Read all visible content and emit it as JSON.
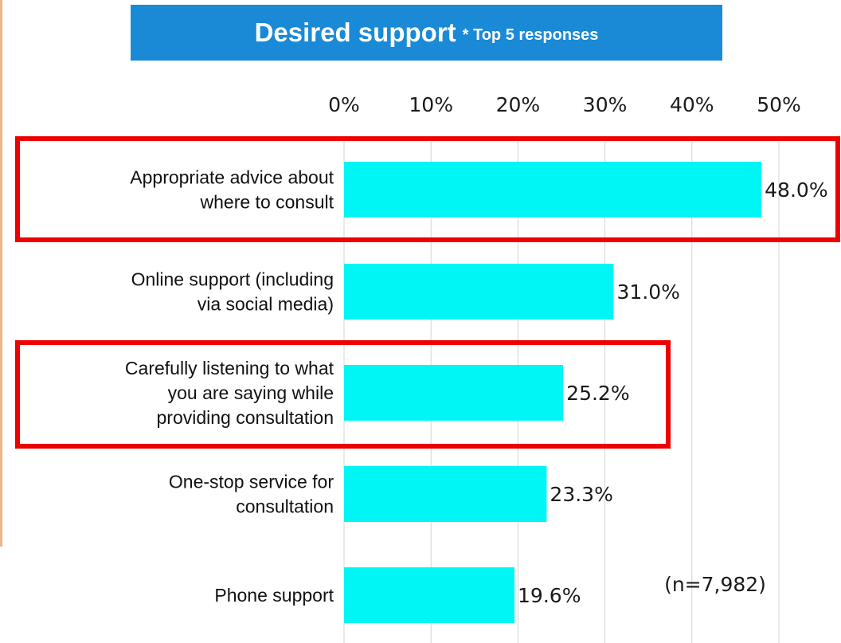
{
  "title": {
    "main": "Desired support",
    "sub": "* Top 5 responses",
    "background": "#1a8ad6"
  },
  "chart_data": {
    "type": "bar",
    "orientation": "horizontal",
    "categories": [
      [
        "Appropriate advice about",
        "where to consult"
      ],
      [
        "Online support (including",
        "via social media)"
      ],
      [
        "Carefully listening to what",
        "you are saying while",
        "providing consultation"
      ],
      [
        "One-stop service for",
        "consultation"
      ],
      [
        "Phone support"
      ]
    ],
    "values": [
      48.0,
      31.0,
      25.2,
      23.3,
      19.6
    ],
    "value_labels": [
      "48.0%",
      "31.0%",
      "25.2%",
      "23.3%",
      "19.6%"
    ],
    "xlim": [
      0,
      50
    ],
    "x_ticks": [
      "0%",
      "10%",
      "20%",
      "30%",
      "40%",
      "50%"
    ],
    "grid": true,
    "bar_color": "#00f5f5",
    "highlight_color": "#ee0000",
    "highlighted_categories": [
      0,
      2
    ],
    "note": "(n=7,982)"
  }
}
